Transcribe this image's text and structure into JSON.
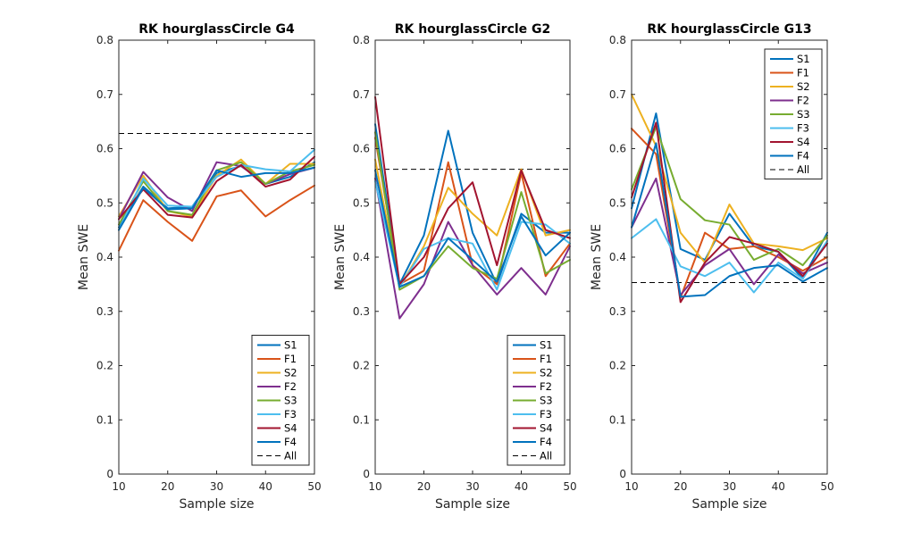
{
  "chart_data": [
    {
      "type": "line",
      "title": "RK hourglassCircle G4",
      "xlabel": "Sample size",
      "ylabel": "Mean SWE",
      "xlim": [
        10,
        50
      ],
      "ylim": [
        0,
        0.8
      ],
      "xticks": [
        10,
        20,
        30,
        40,
        50
      ],
      "yticks": [
        0,
        0.1,
        0.2,
        0.3,
        0.4,
        0.5,
        0.6,
        0.7,
        0.8
      ],
      "x": [
        10,
        15,
        20,
        25,
        30,
        35,
        40,
        45,
        50
      ],
      "legend_location": "bottom-right",
      "reference_line": {
        "name": "All",
        "value": 0.628,
        "style": "dashed",
        "color": "#000000"
      },
      "series": [
        {
          "name": "S1",
          "color": "#0072bd",
          "values": [
            0.455,
            0.53,
            0.49,
            0.493,
            0.555,
            0.568,
            0.535,
            0.548,
            0.575
          ]
        },
        {
          "name": "F1",
          "color": "#d95319",
          "values": [
            0.412,
            0.505,
            0.465,
            0.43,
            0.512,
            0.523,
            0.475,
            0.505,
            0.532
          ]
        },
        {
          "name": "S2",
          "color": "#edb120",
          "values": [
            0.475,
            0.55,
            0.485,
            0.475,
            0.55,
            0.58,
            0.535,
            0.572,
            0.572
          ]
        },
        {
          "name": "F2",
          "color": "#7e2f8e",
          "values": [
            0.47,
            0.557,
            0.51,
            0.485,
            0.575,
            0.568,
            0.535,
            0.553,
            0.565
          ]
        },
        {
          "name": "S3",
          "color": "#77ac30",
          "values": [
            0.46,
            0.54,
            0.485,
            0.478,
            0.56,
            0.575,
            0.535,
            0.558,
            0.57
          ]
        },
        {
          "name": "F3",
          "color": "#4dbeee",
          "values": [
            0.45,
            0.545,
            0.495,
            0.493,
            0.548,
            0.57,
            0.562,
            0.558,
            0.598
          ]
        },
        {
          "name": "S4",
          "color": "#a2142f",
          "values": [
            0.47,
            0.525,
            0.478,
            0.473,
            0.54,
            0.57,
            0.53,
            0.543,
            0.585
          ]
        },
        {
          "name": "F4",
          "color": "#0072bd",
          "values": [
            0.45,
            0.528,
            0.488,
            0.49,
            0.56,
            0.548,
            0.555,
            0.555,
            0.565
          ]
        }
      ]
    },
    {
      "type": "line",
      "title": "RK hourglassCircle G2",
      "xlabel": "Sample size",
      "ylabel": "Mean SWE",
      "xlim": [
        10,
        50
      ],
      "ylim": [
        0,
        0.8
      ],
      "xticks": [
        10,
        20,
        30,
        40,
        50
      ],
      "yticks": [
        0,
        0.1,
        0.2,
        0.3,
        0.4,
        0.5,
        0.6,
        0.7,
        0.8
      ],
      "x": [
        10,
        15,
        20,
        25,
        30,
        35,
        40,
        45,
        50
      ],
      "legend_location": "bottom-right",
      "reference_line": {
        "name": "All",
        "value": 0.562,
        "style": "dashed",
        "color": "#000000"
      },
      "series": [
        {
          "name": "S1",
          "color": "#0072bd",
          "values": [
            0.645,
            0.35,
            0.44,
            0.633,
            0.445,
            0.35,
            0.48,
            0.445,
            0.445
          ]
        },
        {
          "name": "F1",
          "color": "#d95319",
          "values": [
            0.62,
            0.35,
            0.375,
            0.575,
            0.385,
            0.35,
            0.555,
            0.365,
            0.425
          ]
        },
        {
          "name": "S2",
          "color": "#edb120",
          "values": [
            0.58,
            0.345,
            0.42,
            0.528,
            0.48,
            0.44,
            0.562,
            0.44,
            0.45
          ]
        },
        {
          "name": "F2",
          "color": "#7e2f8e",
          "values": [
            0.545,
            0.287,
            0.35,
            0.465,
            0.385,
            0.331,
            0.38,
            0.331,
            0.42
          ]
        },
        {
          "name": "S3",
          "color": "#77ac30",
          "values": [
            0.63,
            0.34,
            0.365,
            0.42,
            0.38,
            0.36,
            0.52,
            0.37,
            0.395
          ]
        },
        {
          "name": "F3",
          "color": "#4dbeee",
          "values": [
            0.54,
            0.345,
            0.415,
            0.435,
            0.425,
            0.34,
            0.465,
            0.46,
            0.425
          ]
        },
        {
          "name": "S4",
          "color": "#a2142f",
          "values": [
            0.695,
            0.35,
            0.4,
            0.49,
            0.538,
            0.385,
            0.56,
            0.45,
            0.435
          ]
        },
        {
          "name": "F4",
          "color": "#0072bd",
          "values": [
            0.56,
            0.345,
            0.365,
            0.435,
            0.395,
            0.355,
            0.475,
            0.403,
            0.445
          ]
        }
      ]
    },
    {
      "type": "line",
      "title": "RK hourglassCircle G13",
      "xlabel": "Sample size",
      "ylabel": "Mean SWE",
      "xlim": [
        10,
        50
      ],
      "ylim": [
        0,
        0.8
      ],
      "xticks": [
        10,
        20,
        30,
        40,
        50
      ],
      "yticks": [
        0,
        0.1,
        0.2,
        0.3,
        0.4,
        0.5,
        0.6,
        0.7,
        0.8
      ],
      "x": [
        10,
        15,
        20,
        25,
        30,
        35,
        40,
        45,
        50
      ],
      "legend_location": "top-right",
      "reference_line": {
        "name": "All",
        "value": 0.353,
        "style": "dashed",
        "color": "#000000"
      },
      "series": [
        {
          "name": "S1",
          "color": "#0072bd",
          "values": [
            0.49,
            0.665,
            0.415,
            0.395,
            0.48,
            0.42,
            0.41,
            0.36,
            0.445
          ]
        },
        {
          "name": "F1",
          "color": "#d95319",
          "values": [
            0.637,
            0.59,
            0.325,
            0.445,
            0.415,
            0.42,
            0.4,
            0.375,
            0.4
          ]
        },
        {
          "name": "S2",
          "color": "#edb120",
          "values": [
            0.7,
            0.605,
            0.445,
            0.39,
            0.497,
            0.425,
            0.42,
            0.413,
            0.435
          ]
        },
        {
          "name": "F2",
          "color": "#7e2f8e",
          "values": [
            0.455,
            0.545,
            0.33,
            0.385,
            0.415,
            0.35,
            0.405,
            0.37,
            0.39
          ]
        },
        {
          "name": "S3",
          "color": "#77ac30",
          "values": [
            0.525,
            0.64,
            0.507,
            0.468,
            0.46,
            0.395,
            0.415,
            0.385,
            0.44
          ]
        },
        {
          "name": "F3",
          "color": "#4dbeee",
          "values": [
            0.435,
            0.47,
            0.383,
            0.365,
            0.39,
            0.335,
            0.39,
            0.36,
            0.43
          ]
        },
        {
          "name": "S4",
          "color": "#a2142f",
          "values": [
            0.51,
            0.648,
            0.317,
            0.39,
            0.437,
            0.425,
            0.41,
            0.365,
            0.425
          ]
        },
        {
          "name": "F4",
          "color": "#0072bd",
          "values": [
            0.455,
            0.61,
            0.327,
            0.33,
            0.365,
            0.38,
            0.385,
            0.355,
            0.38
          ]
        }
      ]
    }
  ]
}
